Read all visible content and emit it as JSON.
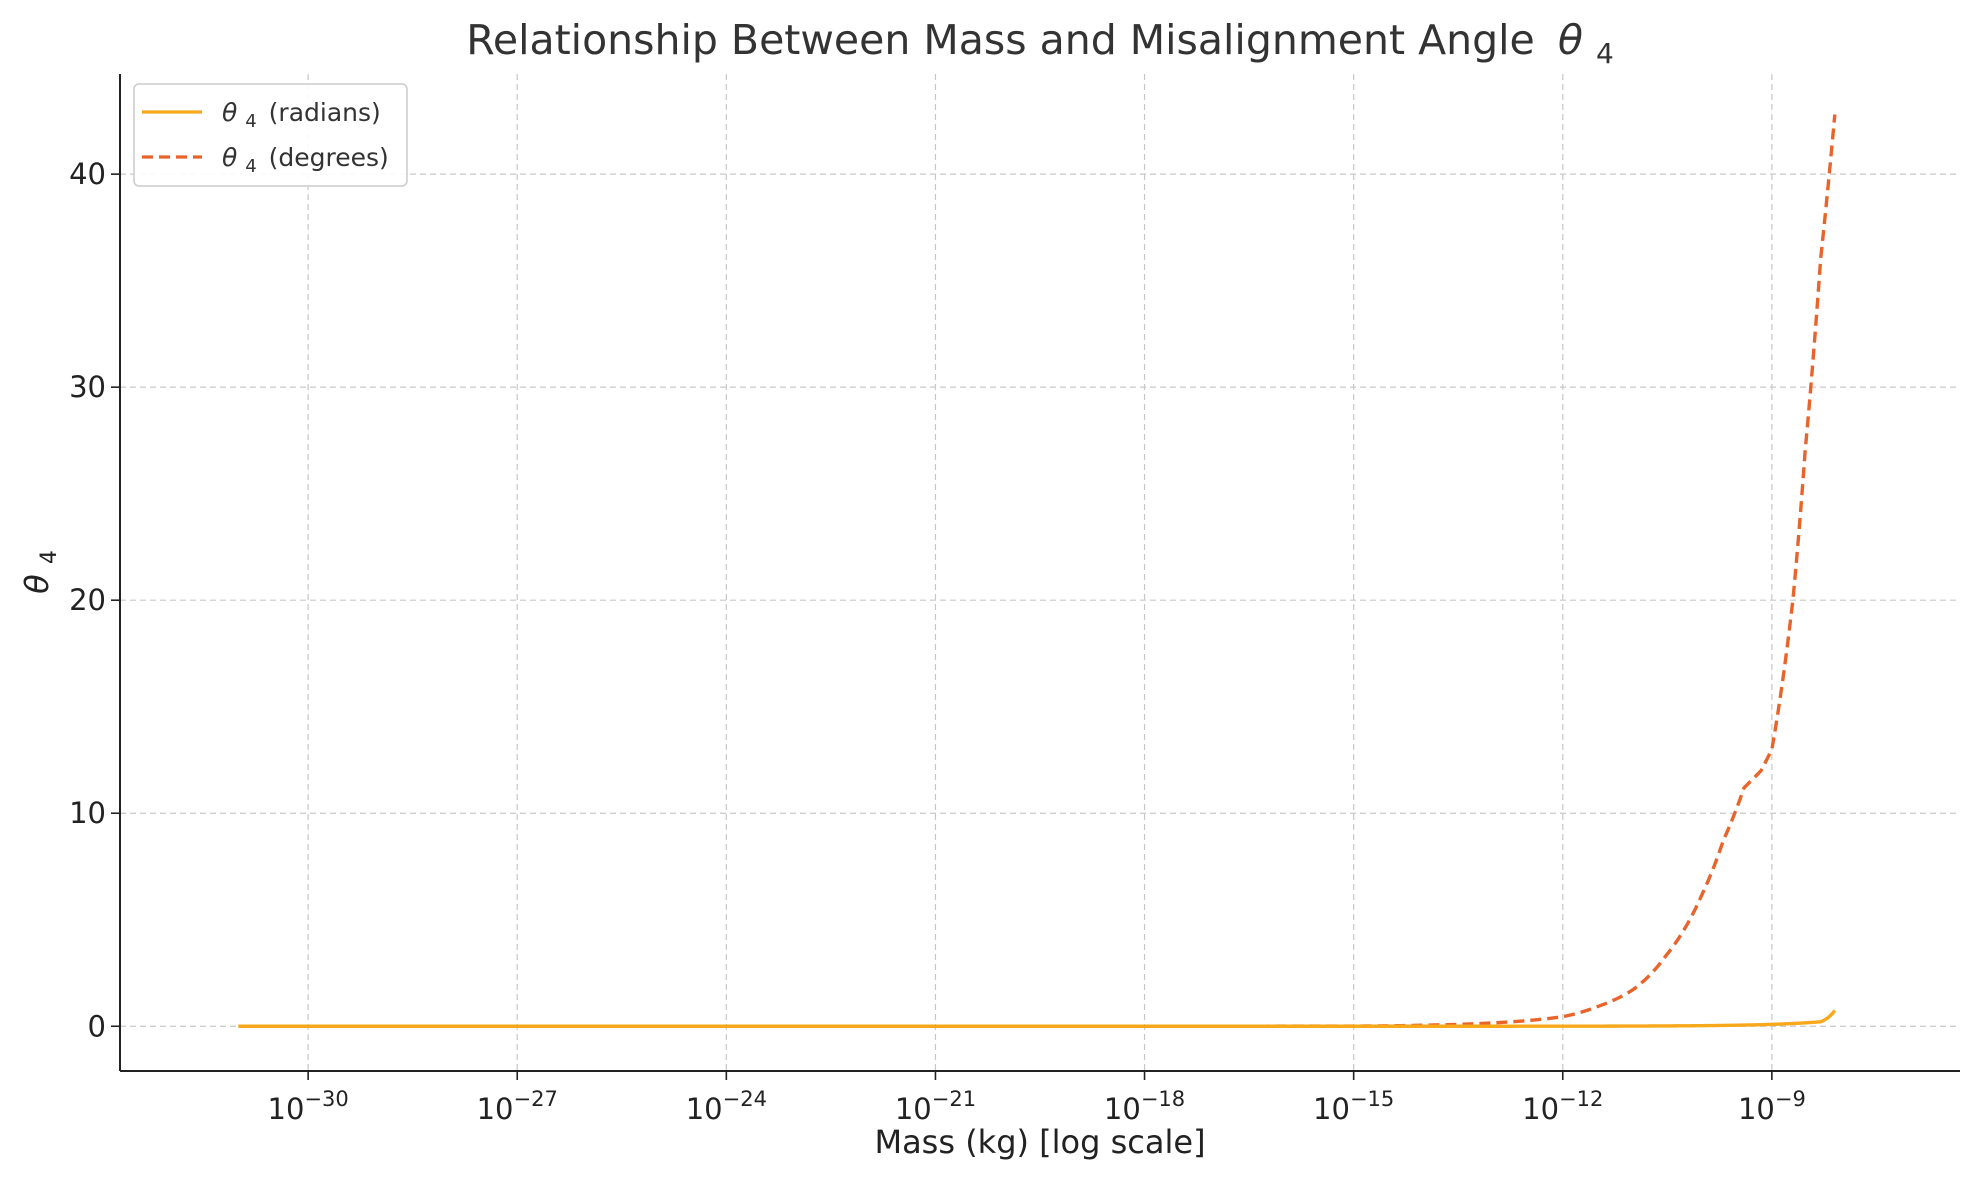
{
  "chart_data": {
    "type": "line",
    "title": "Relationship Between Mass and Misalignment Angle",
    "title_symbol": "θ",
    "title_symbol_subscript": "4",
    "xlabel": "Mass (kg) [log scale]",
    "ylabel_symbol": "θ",
    "ylabel_subscript": "4",
    "x_scale": "log",
    "xlim": [
      2e-33,
      5e-07
    ],
    "ylim": [
      -2.1,
      44.7
    ],
    "grid": true,
    "legend_position": "top-left",
    "x_ticks": [
      {
        "value": 1e-30,
        "base": "10",
        "exponent": "−30"
      },
      {
        "value": 1e-27,
        "base": "10",
        "exponent": "−27"
      },
      {
        "value": 1e-24,
        "base": "10",
        "exponent": "−24"
      },
      {
        "value": 1e-21,
        "base": "10",
        "exponent": "−21"
      },
      {
        "value": 1e-18,
        "base": "10",
        "exponent": "−18"
      },
      {
        "value": 1e-15,
        "base": "10",
        "exponent": "−15"
      },
      {
        "value": 1e-12,
        "base": "10",
        "exponent": "−12"
      },
      {
        "value": 1e-09,
        "base": "10",
        "exponent": "−9"
      }
    ],
    "y_ticks": [
      {
        "value": 0,
        "label": "0"
      },
      {
        "value": 10,
        "label": "10"
      },
      {
        "value": 20,
        "label": "20"
      },
      {
        "value": 30,
        "label": "30"
      },
      {
        "value": 40,
        "label": "40"
      }
    ],
    "series": [
      {
        "name": "(radians)",
        "legend_symbol": "θ",
        "legend_subscript": "4",
        "color": "#f7a81b",
        "style": "solid",
        "x": [
          1e-31,
          1e-30,
          1e-27,
          1e-24,
          1e-21,
          1e-18,
          1e-15,
          1e-14,
          1e-13,
          1e-12,
          1e-11,
          3e-11,
          1e-10,
          2e-10,
          4e-10,
          7e-10,
          1e-09,
          2e-09,
          3e-09,
          5e-09,
          8e-09
        ],
        "y": [
          0,
          0,
          0,
          0,
          0,
          0,
          0.0001,
          0.0003,
          0.001,
          0.0028,
          0.009,
          0.016,
          0.028,
          0.04,
          0.056,
          0.074,
          0.089,
          0.13,
          0.16,
          0.21,
          0.74
        ]
      },
      {
        "name": "(degrees)",
        "legend_symbol": "θ",
        "legend_subscript": "4",
        "color": "#e8642a",
        "style": "dashed",
        "x": [
          1e-31,
          1e-30,
          1e-27,
          1e-24,
          1e-21,
          1e-18,
          1e-15,
          1e-14,
          1e-13,
          1e-12,
          3e-12,
          1e-11,
          3e-11,
          1e-10,
          2e-10,
          4e-10,
          7e-10,
          1e-09,
          2e-09,
          3e-09,
          5e-09,
          8e-09
        ],
        "y": [
          0,
          0,
          0,
          0,
          0,
          0,
          0.01,
          0.05,
          0.16,
          0.45,
          0.9,
          1.7,
          3.3,
          6.2,
          8.7,
          11.2,
          12.0,
          13.0,
          20.0,
          27.0,
          36.0,
          42.8
        ]
      }
    ]
  }
}
